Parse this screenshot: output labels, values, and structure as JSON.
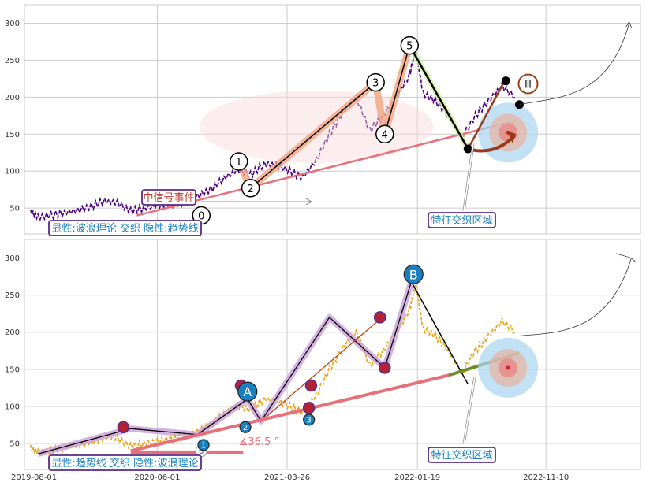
{
  "chart_data": [
    {
      "type": "line",
      "y_ticks": [
        50,
        100,
        150,
        200,
        250,
        300
      ],
      "ylim": [
        15,
        325
      ],
      "x_range": [
        "2019-08-01",
        "2023-06-15"
      ],
      "grid": true,
      "series": [
        {
          "x": [
            "2019-08-15",
            "2019-09-01",
            "2019-10-01",
            "2019-11-01",
            "2019-12-01",
            "2020-01-01",
            "2020-02-01",
            "2020-03-01",
            "2020-04-01",
            "2020-05-01",
            "2020-06-01",
            "2020-07-01",
            "2020-08-01",
            "2020-09-01",
            "2020-10-01",
            "2020-11-01",
            "2020-12-01",
            "2021-01-01",
            "2021-02-01",
            "2021-03-01",
            "2021-04-01",
            "2021-05-01",
            "2021-06-01",
            "2021-07-01",
            "2021-08-01",
            "2021-09-01",
            "2021-10-01",
            "2021-11-01",
            "2021-12-01",
            "2022-01-01",
            "2022-01-15",
            "2022-02-01",
            "2022-03-01",
            "2022-04-01",
            "2022-05-01",
            "2022-06-01",
            "2022-07-01",
            "2022-08-01",
            "2022-09-01"
          ],
          "values": [
            45,
            38,
            40,
            44,
            47,
            52,
            60,
            57,
            46,
            50,
            53,
            56,
            58,
            66,
            75,
            90,
            102,
            95,
            110,
            108,
            100,
            92,
            115,
            150,
            180,
            200,
            155,
            175,
            200,
            230,
            265,
            205,
            195,
            175,
            145,
            175,
            195,
            215,
            200
          ]
        }
      ],
      "wave_points": [
        {
          "label": "0",
          "x": "2020-09-10",
          "y": 40
        },
        {
          "label": "1",
          "x": "2020-12-05",
          "y": 113
        },
        {
          "label": "2",
          "x": "2021-01-01",
          "y": 77
        },
        {
          "label": "3",
          "x": "2021-10-15",
          "y": 220
        },
        {
          "label": "4",
          "x": "2021-11-05",
          "y": 150
        },
        {
          "label": "5",
          "x": "2022-01-01",
          "y": 270
        }
      ],
      "annotations": {
        "signal_event": "中信号事件",
        "zone_label": "特征交织区域",
        "legend_text": "显性:波浪理论 交织 隐性:趋势线",
        "roman": "Ⅲ"
      },
      "colors": {
        "price": "#4b0082",
        "trend": "#e8707a",
        "wave": "#000000",
        "band": "#f4a582",
        "zone": "#aad4f0"
      }
    },
    {
      "type": "line",
      "x_ticks": [
        "2019-08-01",
        "2020-06-01",
        "2021-03-26",
        "2022-01-19",
        "2022-11-10"
      ],
      "y_ticks": [
        50,
        100,
        150,
        200,
        250,
        300
      ],
      "ylim": [
        15,
        325
      ],
      "x_range": [
        "2019-08-01",
        "2023-06-15"
      ],
      "grid": true,
      "series": [
        {
          "x": [
            "2019-08-15",
            "2019-09-01",
            "2019-10-01",
            "2019-11-01",
            "2019-12-01",
            "2020-01-01",
            "2020-02-01",
            "2020-03-01",
            "2020-04-01",
            "2020-05-01",
            "2020-06-01",
            "2020-07-01",
            "2020-08-01",
            "2020-09-01",
            "2020-10-01",
            "2020-11-01",
            "2020-12-01",
            "2021-01-01",
            "2021-02-01",
            "2021-03-01",
            "2021-04-01",
            "2021-05-01",
            "2021-06-01",
            "2021-07-01",
            "2021-08-01",
            "2021-09-01",
            "2021-10-01",
            "2021-11-01",
            "2021-12-01",
            "2022-01-01",
            "2022-01-15",
            "2022-02-01",
            "2022-03-01",
            "2022-04-01",
            "2022-05-01",
            "2022-06-01",
            "2022-07-01",
            "2022-08-01",
            "2022-09-01"
          ],
          "values": [
            45,
            38,
            40,
            44,
            47,
            52,
            60,
            57,
            46,
            50,
            53,
            56,
            58,
            66,
            75,
            90,
            102,
            95,
            110,
            108,
            100,
            92,
            115,
            150,
            180,
            200,
            155,
            175,
            200,
            230,
            265,
            205,
            195,
            175,
            145,
            175,
            195,
            215,
            200
          ]
        }
      ],
      "wave_points": [
        {
          "label": "0",
          "x": "2020-09-10",
          "y": 40
        },
        {
          "label": "1",
          "x": "2020-09-15",
          "y": 48
        },
        {
          "label": "2",
          "x": "2020-12-20",
          "y": 72
        },
        {
          "label": "A",
          "x": "2020-12-25",
          "y": 120
        },
        {
          "label": "3",
          "x": "2021-05-15",
          "y": 82
        },
        {
          "label": "B",
          "x": "2022-01-10",
          "y": 278
        }
      ],
      "annotations": {
        "angle": "∡36.5 °",
        "zone_label": "特征交织区域",
        "legend_text": "显性:趋势线 交织 隐性:波浪理论"
      },
      "colors": {
        "price": "#e8a317",
        "trend": "#e8707a",
        "wave": "#000000",
        "band": "#c9a0dc",
        "zone": "#aad4f0",
        "green": "#6b8e23"
      }
    }
  ]
}
